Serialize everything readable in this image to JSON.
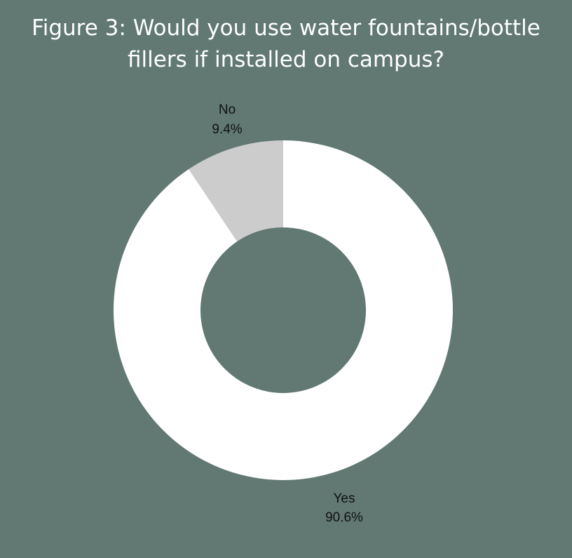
{
  "chart_data": {
    "type": "pie",
    "variant": "donut",
    "title": {
      "line1": "Figure 3: Would you use water fountains/bottle",
      "line2": "fillers if installed on campus?"
    },
    "slices": [
      {
        "label": "No",
        "value": 9.4,
        "display": "9.4%",
        "color": "#cccccc"
      },
      {
        "label": "Yes",
        "value": 90.6,
        "display": "90.6%",
        "color": "#ffffff"
      }
    ],
    "start": "12 o'clock",
    "direction": "counterclockwise from top for first slice",
    "legend": "none",
    "background": "#617873"
  }
}
